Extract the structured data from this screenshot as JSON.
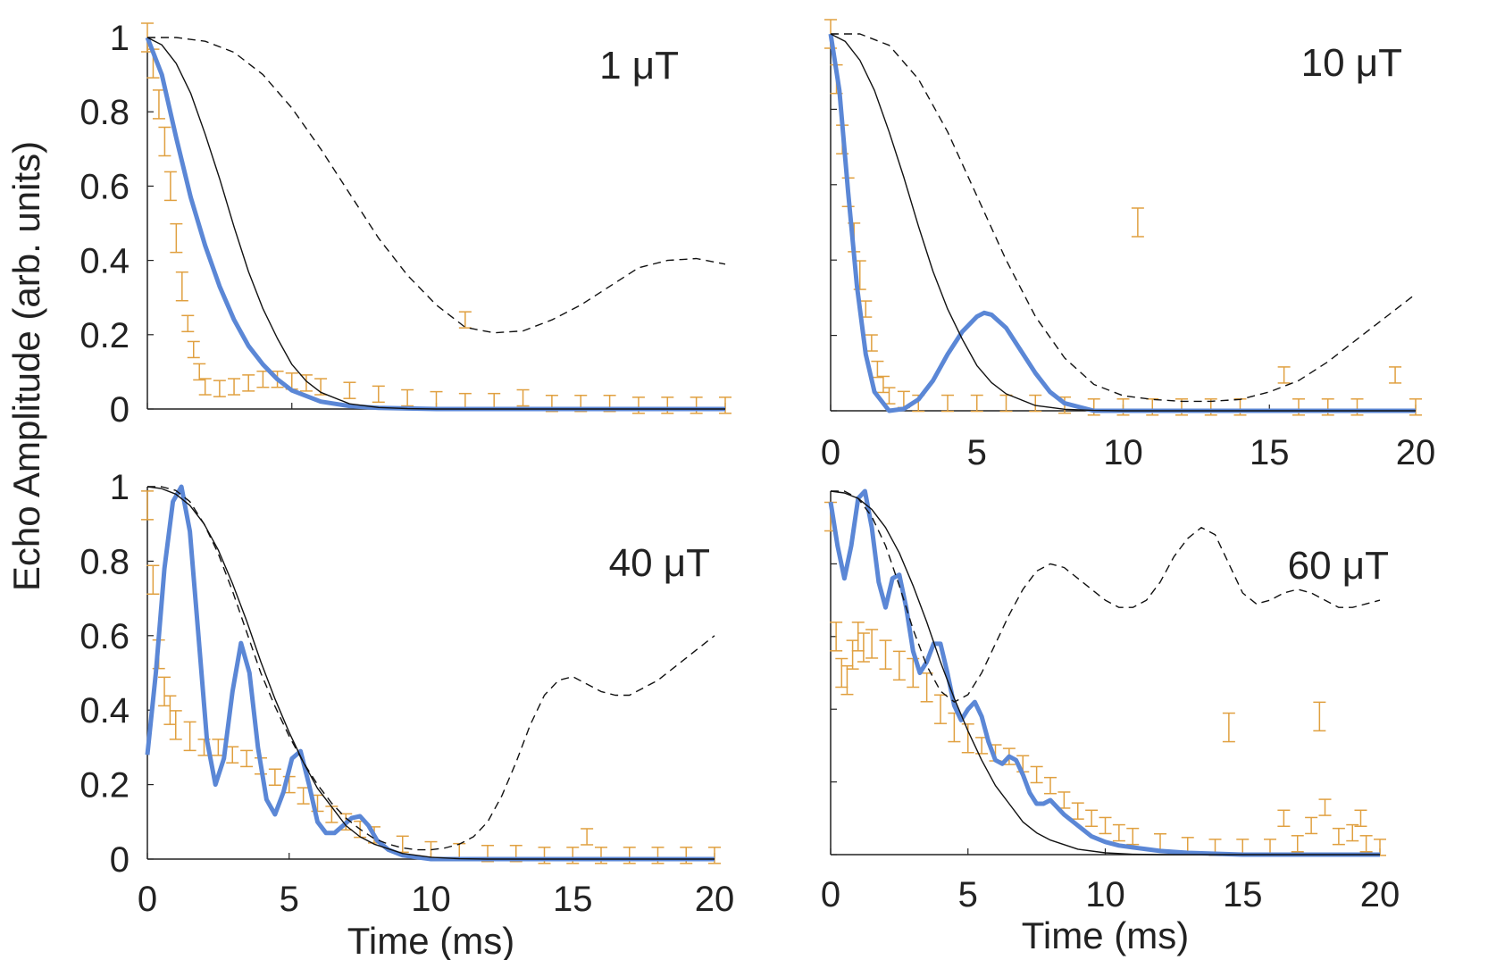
{
  "chart_data": [
    {
      "type": "line",
      "panel_label": "1 μT",
      "xlim": [
        0,
        20
      ],
      "ylim": [
        0,
        1
      ],
      "xticks": [],
      "yticks": [
        "0",
        "0.2",
        "0.4",
        "0.6",
        "0.8",
        "1"
      ],
      "ylabel": "Echo Amplitude (arb. units)",
      "xlabel": "",
      "series": [
        {
          "name": "data",
          "style": "errorbar",
          "x": [
            0,
            0.2,
            0.4,
            0.6,
            0.8,
            1.0,
            1.2,
            1.4,
            1.6,
            1.8,
            2.0,
            2.5,
            3.0,
            3.5,
            4.0,
            4.5,
            5.0,
            5.5,
            6.0,
            7.0,
            8.0,
            9.0,
            10.0,
            11.0,
            11.0,
            12.0,
            13.0,
            14.0,
            15.0,
            16.0,
            17.0,
            18.0,
            19.0,
            20.0
          ],
          "y": [
            1.0,
            0.93,
            0.82,
            0.72,
            0.6,
            0.46,
            0.33,
            0.23,
            0.16,
            0.1,
            0.06,
            0.055,
            0.06,
            0.07,
            0.08,
            0.08,
            0.075,
            0.07,
            0.06,
            0.05,
            0.04,
            0.03,
            0.025,
            0.24,
            0.02,
            0.02,
            0.03,
            0.015,
            0.015,
            0.015,
            0.01,
            0.01,
            0.01,
            0.01
          ]
        },
        {
          "name": "model-blue",
          "x": [
            0,
            0.5,
            1,
            1.5,
            2,
            2.5,
            3,
            3.5,
            4,
            4.5,
            5,
            6,
            7,
            8,
            10,
            12,
            15,
            20
          ],
          "y": [
            1.0,
            0.9,
            0.73,
            0.57,
            0.44,
            0.33,
            0.24,
            0.17,
            0.12,
            0.08,
            0.05,
            0.02,
            0.008,
            0.003,
            0,
            0,
            0,
            0
          ]
        },
        {
          "name": "model-solid",
          "x": [
            0,
            0.5,
            1,
            1.5,
            2,
            2.5,
            3,
            3.5,
            4,
            4.5,
            5,
            5.5,
            6,
            7,
            8,
            9,
            10,
            12,
            15,
            20
          ],
          "y": [
            1.0,
            0.98,
            0.93,
            0.85,
            0.74,
            0.62,
            0.49,
            0.37,
            0.27,
            0.19,
            0.12,
            0.075,
            0.045,
            0.014,
            0.004,
            0.001,
            0,
            0,
            0,
            0
          ]
        },
        {
          "name": "model-dashed",
          "x": [
            0,
            1,
            2,
            3,
            4,
            5,
            6,
            7,
            8,
            9,
            10,
            11,
            12,
            13,
            14,
            15,
            16,
            17,
            18,
            19,
            20
          ],
          "y": [
            1.0,
            1.0,
            0.99,
            0.96,
            0.9,
            0.81,
            0.7,
            0.58,
            0.46,
            0.36,
            0.28,
            0.22,
            0.205,
            0.21,
            0.24,
            0.28,
            0.33,
            0.38,
            0.4,
            0.405,
            0.39
          ]
        }
      ]
    },
    {
      "type": "line",
      "panel_label": "10 μT",
      "xlim": [
        0,
        20
      ],
      "ylim": [
        0,
        1
      ],
      "xticks": [
        "0",
        "5",
        "10",
        "15",
        "20"
      ],
      "yticks": [],
      "ylabel": "",
      "xlabel": "",
      "series": [
        {
          "name": "data",
          "style": "errorbar",
          "x": [
            0,
            0.2,
            0.4,
            0.6,
            0.8,
            1.0,
            1.2,
            1.4,
            1.6,
            1.8,
            2.0,
            2.5,
            3.0,
            4.0,
            5.0,
            6.0,
            7.0,
            8.0,
            9.0,
            10.0,
            10.5,
            11.0,
            12.0,
            13.0,
            14.0,
            15.5,
            16.0,
            17.0,
            18.0,
            19.3,
            20.0
          ],
          "y": [
            1.0,
            0.88,
            0.72,
            0.58,
            0.46,
            0.36,
            0.27,
            0.18,
            0.11,
            0.07,
            0.04,
            0.03,
            0.02,
            0.02,
            0.02,
            0.02,
            0.02,
            0.015,
            0.01,
            0.01,
            0.5,
            0.01,
            0.01,
            0.01,
            0.01,
            0.095,
            0.01,
            0.01,
            0.01,
            0.095,
            0.01
          ]
        },
        {
          "name": "model-blue",
          "x": [
            0,
            0.3,
            0.6,
            0.9,
            1.2,
            1.5,
            2.0,
            2.5,
            3.0,
            3.5,
            4.0,
            4.5,
            5.0,
            5.25,
            5.5,
            6.0,
            6.5,
            7.0,
            7.5,
            8.0,
            9.0,
            10,
            12,
            15,
            20
          ],
          "y": [
            1.0,
            0.85,
            0.58,
            0.33,
            0.15,
            0.05,
            0.0,
            0.005,
            0.03,
            0.08,
            0.15,
            0.21,
            0.25,
            0.26,
            0.255,
            0.22,
            0.16,
            0.1,
            0.05,
            0.02,
            0.0,
            0,
            0,
            0,
            0
          ]
        },
        {
          "name": "model-solid",
          "x": [
            0,
            0.5,
            1,
            1.5,
            2,
            2.5,
            3,
            3.5,
            4,
            4.5,
            5,
            5.5,
            6,
            7,
            8,
            9,
            10,
            12,
            15,
            20
          ],
          "y": [
            1.0,
            0.98,
            0.93,
            0.85,
            0.74,
            0.62,
            0.49,
            0.37,
            0.27,
            0.19,
            0.12,
            0.075,
            0.045,
            0.014,
            0.004,
            0.001,
            0,
            0,
            0,
            0
          ]
        },
        {
          "name": "model-dashed",
          "x": [
            0,
            1,
            2,
            3,
            4,
            5,
            6,
            7,
            8,
            9,
            10,
            11,
            12,
            13,
            14,
            15,
            16,
            17,
            18,
            19,
            20
          ],
          "y": [
            1.0,
            1.0,
            0.97,
            0.88,
            0.74,
            0.57,
            0.4,
            0.25,
            0.14,
            0.07,
            0.04,
            0.03,
            0.025,
            0.025,
            0.03,
            0.05,
            0.08,
            0.13,
            0.19,
            0.25,
            0.31
          ]
        }
      ]
    },
    {
      "type": "line",
      "panel_label": "40 μT",
      "xlim": [
        0,
        20
      ],
      "ylim": [
        0,
        1
      ],
      "xticks": [
        "0",
        "5",
        "10",
        "15",
        "20"
      ],
      "yticks": [
        "0",
        "0.2",
        "0.4",
        "0.6",
        "0.8",
        "1"
      ],
      "ylabel": "",
      "xlabel": "Time (ms)",
      "series": [
        {
          "name": "data",
          "style": "errorbar",
          "x": [
            0,
            0.2,
            0.4,
            0.6,
            0.8,
            1.0,
            1.5,
            2.0,
            2.5,
            3.0,
            3.5,
            4.0,
            4.5,
            5.0,
            5.5,
            6.0,
            6.5,
            7.0,
            7.5,
            8.0,
            9.0,
            10.0,
            11.0,
            12.0,
            13.0,
            14.0,
            15.0,
            15.5,
            16.0,
            17.0,
            18.0,
            19.0,
            20.0
          ],
          "y": [
            0.95,
            0.75,
            0.55,
            0.45,
            0.4,
            0.36,
            0.33,
            0.3,
            0.3,
            0.28,
            0.27,
            0.25,
            0.22,
            0.2,
            0.17,
            0.15,
            0.12,
            0.1,
            0.08,
            0.065,
            0.04,
            0.025,
            0.02,
            0.015,
            0.015,
            0.01,
            0.01,
            0.06,
            0.01,
            0.01,
            0.01,
            0.01,
            0.01
          ]
        },
        {
          "name": "model-blue",
          "x": [
            0,
            0.3,
            0.6,
            0.9,
            1.2,
            1.5,
            1.8,
            2.1,
            2.4,
            2.7,
            3.0,
            3.3,
            3.6,
            3.9,
            4.2,
            4.5,
            4.8,
            5.1,
            5.4,
            5.7,
            6.0,
            6.3,
            6.6,
            6.9,
            7.2,
            7.5,
            7.8,
            8.1,
            8.5,
            9,
            10,
            12,
            15,
            20
          ],
          "y": [
            0.28,
            0.5,
            0.78,
            0.96,
            1.0,
            0.88,
            0.6,
            0.32,
            0.2,
            0.27,
            0.45,
            0.58,
            0.5,
            0.3,
            0.16,
            0.12,
            0.18,
            0.27,
            0.29,
            0.2,
            0.1,
            0.07,
            0.07,
            0.09,
            0.11,
            0.115,
            0.09,
            0.05,
            0.025,
            0.01,
            0,
            0,
            0,
            0
          ]
        },
        {
          "name": "model-solid",
          "x": [
            0,
            0.5,
            1,
            1.5,
            2,
            2.5,
            3,
            3.5,
            4,
            4.5,
            5,
            5.5,
            6,
            6.5,
            7,
            7.5,
            8,
            9,
            10,
            11,
            12,
            15,
            20
          ],
          "y": [
            1.0,
            0.995,
            0.98,
            0.95,
            0.9,
            0.83,
            0.74,
            0.64,
            0.53,
            0.43,
            0.34,
            0.26,
            0.19,
            0.14,
            0.09,
            0.06,
            0.04,
            0.015,
            0.005,
            0.001,
            0,
            0,
            0
          ]
        },
        {
          "name": "model-dashed",
          "x": [
            0,
            0.5,
            1,
            1.5,
            2,
            2.5,
            3,
            3.5,
            4,
            4.5,
            5,
            5.5,
            6,
            6.5,
            7,
            7.5,
            8,
            8.5,
            9,
            9.5,
            10,
            10.5,
            11,
            11.5,
            12,
            12.5,
            13,
            13.5,
            14,
            14.5,
            15,
            15.5,
            16,
            16.5,
            17,
            17.5,
            18,
            18.5,
            19,
            19.5,
            20
          ],
          "y": [
            1.0,
            1.0,
            0.99,
            0.96,
            0.9,
            0.82,
            0.72,
            0.61,
            0.5,
            0.41,
            0.33,
            0.26,
            0.2,
            0.15,
            0.11,
            0.08,
            0.055,
            0.04,
            0.03,
            0.025,
            0.025,
            0.03,
            0.04,
            0.06,
            0.1,
            0.17,
            0.26,
            0.36,
            0.44,
            0.48,
            0.49,
            0.47,
            0.45,
            0.44,
            0.44,
            0.46,
            0.48,
            0.51,
            0.54,
            0.57,
            0.6
          ]
        }
      ]
    },
    {
      "type": "line",
      "panel_label": "60 μT",
      "xlim": [
        0,
        20
      ],
      "ylim": [
        0,
        1
      ],
      "xticks": [
        "0",
        "5",
        "10",
        "15",
        "20"
      ],
      "yticks": [],
      "ylabel": "",
      "xlabel": "Time (ms)",
      "series": [
        {
          "name": "data",
          "style": "errorbar",
          "x": [
            0,
            0.2,
            0.4,
            0.6,
            0.8,
            1.0,
            1.2,
            1.5,
            2.0,
            2.5,
            3.0,
            3.5,
            4.0,
            4.5,
            5.0,
            5.5,
            6.0,
            6.5,
            7.0,
            7.5,
            8.0,
            8.5,
            9.0,
            9.5,
            10.0,
            10.5,
            11.0,
            12.0,
            13.0,
            14.0,
            14.5,
            15.0,
            16.0,
            16.5,
            17.0,
            17.5,
            17.8,
            18.0,
            18.5,
            19.0,
            19.3,
            19.5,
            20.0
          ],
          "y": [
            0.93,
            0.6,
            0.5,
            0.48,
            0.55,
            0.6,
            0.57,
            0.58,
            0.55,
            0.52,
            0.5,
            0.46,
            0.4,
            0.35,
            0.32,
            0.3,
            0.28,
            0.27,
            0.25,
            0.22,
            0.19,
            0.15,
            0.12,
            0.1,
            0.08,
            0.06,
            0.05,
            0.035,
            0.025,
            0.02,
            0.35,
            0.02,
            0.02,
            0.1,
            0.03,
            0.08,
            0.38,
            0.13,
            0.05,
            0.06,
            0.1,
            0.03,
            0.02
          ]
        },
        {
          "name": "model-blue",
          "x": [
            0,
            0.25,
            0.5,
            0.75,
            1.0,
            1.25,
            1.5,
            1.75,
            2.0,
            2.25,
            2.5,
            2.75,
            3.0,
            3.25,
            3.5,
            3.75,
            4.0,
            4.25,
            4.5,
            4.75,
            5.0,
            5.25,
            5.5,
            5.75,
            6.0,
            6.25,
            6.5,
            6.75,
            7.0,
            7.25,
            7.5,
            7.75,
            8.0,
            8.5,
            9.0,
            9.5,
            10.0,
            10.5,
            11.0,
            11.5,
            12,
            13,
            15,
            20
          ],
          "y": [
            0.97,
            0.85,
            0.76,
            0.85,
            0.98,
            1.0,
            0.9,
            0.75,
            0.68,
            0.76,
            0.77,
            0.68,
            0.56,
            0.5,
            0.53,
            0.58,
            0.58,
            0.5,
            0.41,
            0.37,
            0.4,
            0.42,
            0.38,
            0.31,
            0.26,
            0.25,
            0.27,
            0.26,
            0.22,
            0.17,
            0.14,
            0.14,
            0.15,
            0.11,
            0.08,
            0.05,
            0.035,
            0.025,
            0.02,
            0.015,
            0.01,
            0.005,
            0,
            0
          ]
        },
        {
          "name": "model-solid",
          "x": [
            0,
            0.5,
            1,
            1.5,
            2,
            2.5,
            3,
            3.5,
            4,
            4.5,
            5,
            5.5,
            6,
            6.5,
            7,
            7.5,
            8,
            9,
            10,
            11,
            12,
            15,
            20
          ],
          "y": [
            1.0,
            0.995,
            0.98,
            0.95,
            0.9,
            0.83,
            0.74,
            0.64,
            0.53,
            0.43,
            0.34,
            0.26,
            0.19,
            0.14,
            0.09,
            0.06,
            0.04,
            0.015,
            0.005,
            0.001,
            0,
            0,
            0
          ]
        },
        {
          "name": "model-dashed",
          "x": [
            0,
            0.5,
            1,
            1.5,
            2,
            2.5,
            3,
            3.5,
            4,
            4.5,
            5,
            5.5,
            6,
            6.5,
            7,
            7.5,
            8,
            8.5,
            9,
            9.5,
            10,
            10.5,
            11,
            11.5,
            12,
            12.5,
            13,
            13.5,
            14,
            14.5,
            15,
            15.5,
            16,
            16.5,
            17,
            17.5,
            18,
            18.5,
            19,
            19.5,
            20
          ],
          "y": [
            1.0,
            1.0,
            0.98,
            0.93,
            0.85,
            0.74,
            0.62,
            0.52,
            0.45,
            0.42,
            0.44,
            0.5,
            0.58,
            0.66,
            0.73,
            0.78,
            0.8,
            0.79,
            0.76,
            0.73,
            0.7,
            0.68,
            0.68,
            0.7,
            0.75,
            0.82,
            0.87,
            0.9,
            0.88,
            0.8,
            0.72,
            0.69,
            0.7,
            0.72,
            0.73,
            0.72,
            0.7,
            0.68,
            0.68,
            0.69,
            0.7
          ]
        }
      ]
    }
  ],
  "colors": {
    "data": "#e0a040",
    "blue": "#5b87d6",
    "solid": "#111111",
    "dashed": "#111111",
    "axis": "#222222"
  }
}
